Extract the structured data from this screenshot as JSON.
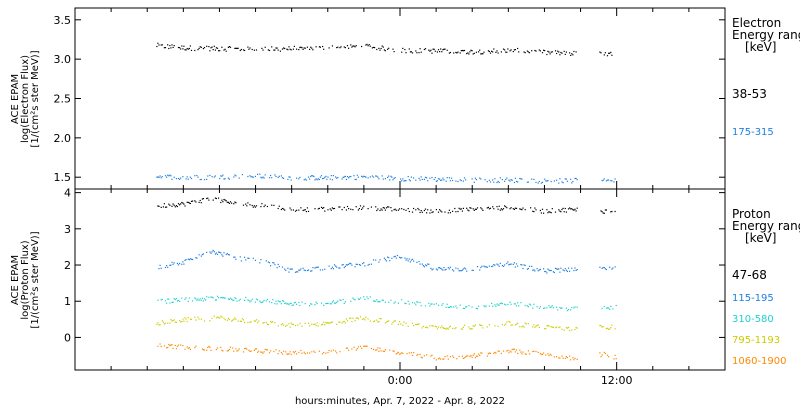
{
  "chart_data": [
    {
      "type": "scatter",
      "panel": "electron",
      "ylabel_lines": [
        "ACE EPAM",
        "log(Electron Flux)",
        "[1/(cm²s ster MeV)]"
      ],
      "ylim": [
        1.35,
        3.65
      ],
      "yticks": [
        "1.5",
        "2.0",
        "2.5",
        "3.0",
        "3.5"
      ],
      "ytick_values": [
        1.5,
        2.0,
        2.5,
        3.0,
        3.5
      ],
      "legend_title": [
        "Electron",
        "Energy ranges",
        "[keV]"
      ],
      "series": [
        {
          "name": "38-53",
          "color": "#000000",
          "x": [
            -13.5,
            -12,
            -10,
            -8,
            -6,
            -4,
            -2,
            0,
            2,
            4,
            6,
            8,
            9.5,
            11.3,
            12
          ],
          "y": [
            3.18,
            3.15,
            3.14,
            3.13,
            3.14,
            3.15,
            3.17,
            3.12,
            3.11,
            3.1,
            3.12,
            3.09,
            3.08,
            3.07,
            3.06
          ]
        },
        {
          "name": "175-315",
          "color": "#1f7fe0",
          "x": [
            -13.5,
            -12,
            -10,
            -8,
            -6,
            -4,
            -2,
            0,
            2,
            4,
            6,
            8,
            9.5,
            11.3,
            12
          ],
          "y": [
            1.52,
            1.5,
            1.51,
            1.52,
            1.5,
            1.5,
            1.51,
            1.49,
            1.48,
            1.47,
            1.47,
            1.46,
            1.46,
            1.49,
            1.45
          ]
        }
      ]
    },
    {
      "type": "scatter",
      "panel": "proton",
      "ylabel_lines": [
        "ACE EPAM",
        "log(Proton Flux)",
        "[1/(cm²s ster MeV)]"
      ],
      "ylim": [
        -0.9,
        4.1
      ],
      "yticks": [
        "0",
        "1",
        "2",
        "3",
        "4"
      ],
      "ytick_values": [
        0,
        1,
        2,
        3,
        4
      ],
      "legend_title": [
        "Proton",
        "Energy ranges",
        "[keV]"
      ],
      "series": [
        {
          "name": "47-68",
          "color": "#000000",
          "x": [
            -13.5,
            -12,
            -10.5,
            -9,
            -7.5,
            -6,
            -4,
            -2,
            0,
            2,
            4,
            6,
            8,
            9.5,
            11.3,
            12
          ],
          "y": [
            3.65,
            3.7,
            3.85,
            3.7,
            3.65,
            3.55,
            3.55,
            3.6,
            3.55,
            3.5,
            3.55,
            3.6,
            3.5,
            3.55,
            3.5,
            3.55
          ]
        },
        {
          "name": "115-195",
          "color": "#1f7fe0",
          "x": [
            -13.5,
            -12,
            -10.5,
            -9,
            -7.5,
            -6,
            -4,
            -2,
            0,
            2,
            4,
            6,
            8,
            9.5,
            11.3,
            12
          ],
          "y": [
            1.95,
            2.1,
            2.4,
            2.2,
            2.1,
            1.85,
            1.95,
            2.05,
            2.25,
            1.9,
            1.9,
            2.05,
            1.85,
            1.9,
            1.95,
            1.95
          ]
        },
        {
          "name": "310-580",
          "color": "#20d0d0",
          "x": [
            -13.5,
            -12,
            -10,
            -8,
            -6,
            -4,
            -2,
            0,
            2,
            4,
            6,
            8,
            9.5,
            11.3,
            12
          ],
          "y": [
            1.0,
            1.05,
            1.1,
            1.05,
            0.95,
            0.95,
            1.1,
            1.0,
            0.9,
            0.85,
            0.95,
            0.85,
            0.8,
            0.85,
            0.85
          ]
        },
        {
          "name": "795-1193",
          "color": "#cccc00",
          "x": [
            -13.5,
            -12,
            -10,
            -8,
            -6,
            -4,
            -2,
            0,
            2,
            4,
            6,
            8,
            9.5,
            11.3,
            12
          ],
          "y": [
            0.4,
            0.5,
            0.55,
            0.45,
            0.35,
            0.4,
            0.55,
            0.4,
            0.3,
            0.3,
            0.4,
            0.3,
            0.25,
            0.3,
            0.3
          ]
        },
        {
          "name": "1060-1900",
          "color": "#ff8800",
          "x": [
            -13.5,
            -12,
            -10,
            -8,
            -6,
            -4,
            -2,
            0,
            2,
            4,
            6,
            8,
            9.5,
            11.3,
            12
          ],
          "y": [
            -0.2,
            -0.25,
            -0.3,
            -0.35,
            -0.4,
            -0.4,
            -0.25,
            -0.4,
            -0.55,
            -0.5,
            -0.35,
            -0.45,
            -0.55,
            -0.45,
            -0.55
          ]
        }
      ]
    }
  ],
  "xaxis": {
    "xlabel": "hours:minutes, Apr.  7, 2022 - Apr.  8, 2022",
    "xlim": [
      -18,
      18
    ],
    "major_ticks": [
      {
        "value": 0,
        "label": "0:00"
      },
      {
        "value": 12,
        "label": "12:00"
      }
    ],
    "minor_ticks": [
      -16,
      -14,
      -12,
      -10,
      -8,
      -6,
      -4,
      -2,
      2,
      4,
      6,
      8,
      10,
      14,
      16
    ],
    "data_gap": [
      9.8,
      11.0
    ]
  }
}
